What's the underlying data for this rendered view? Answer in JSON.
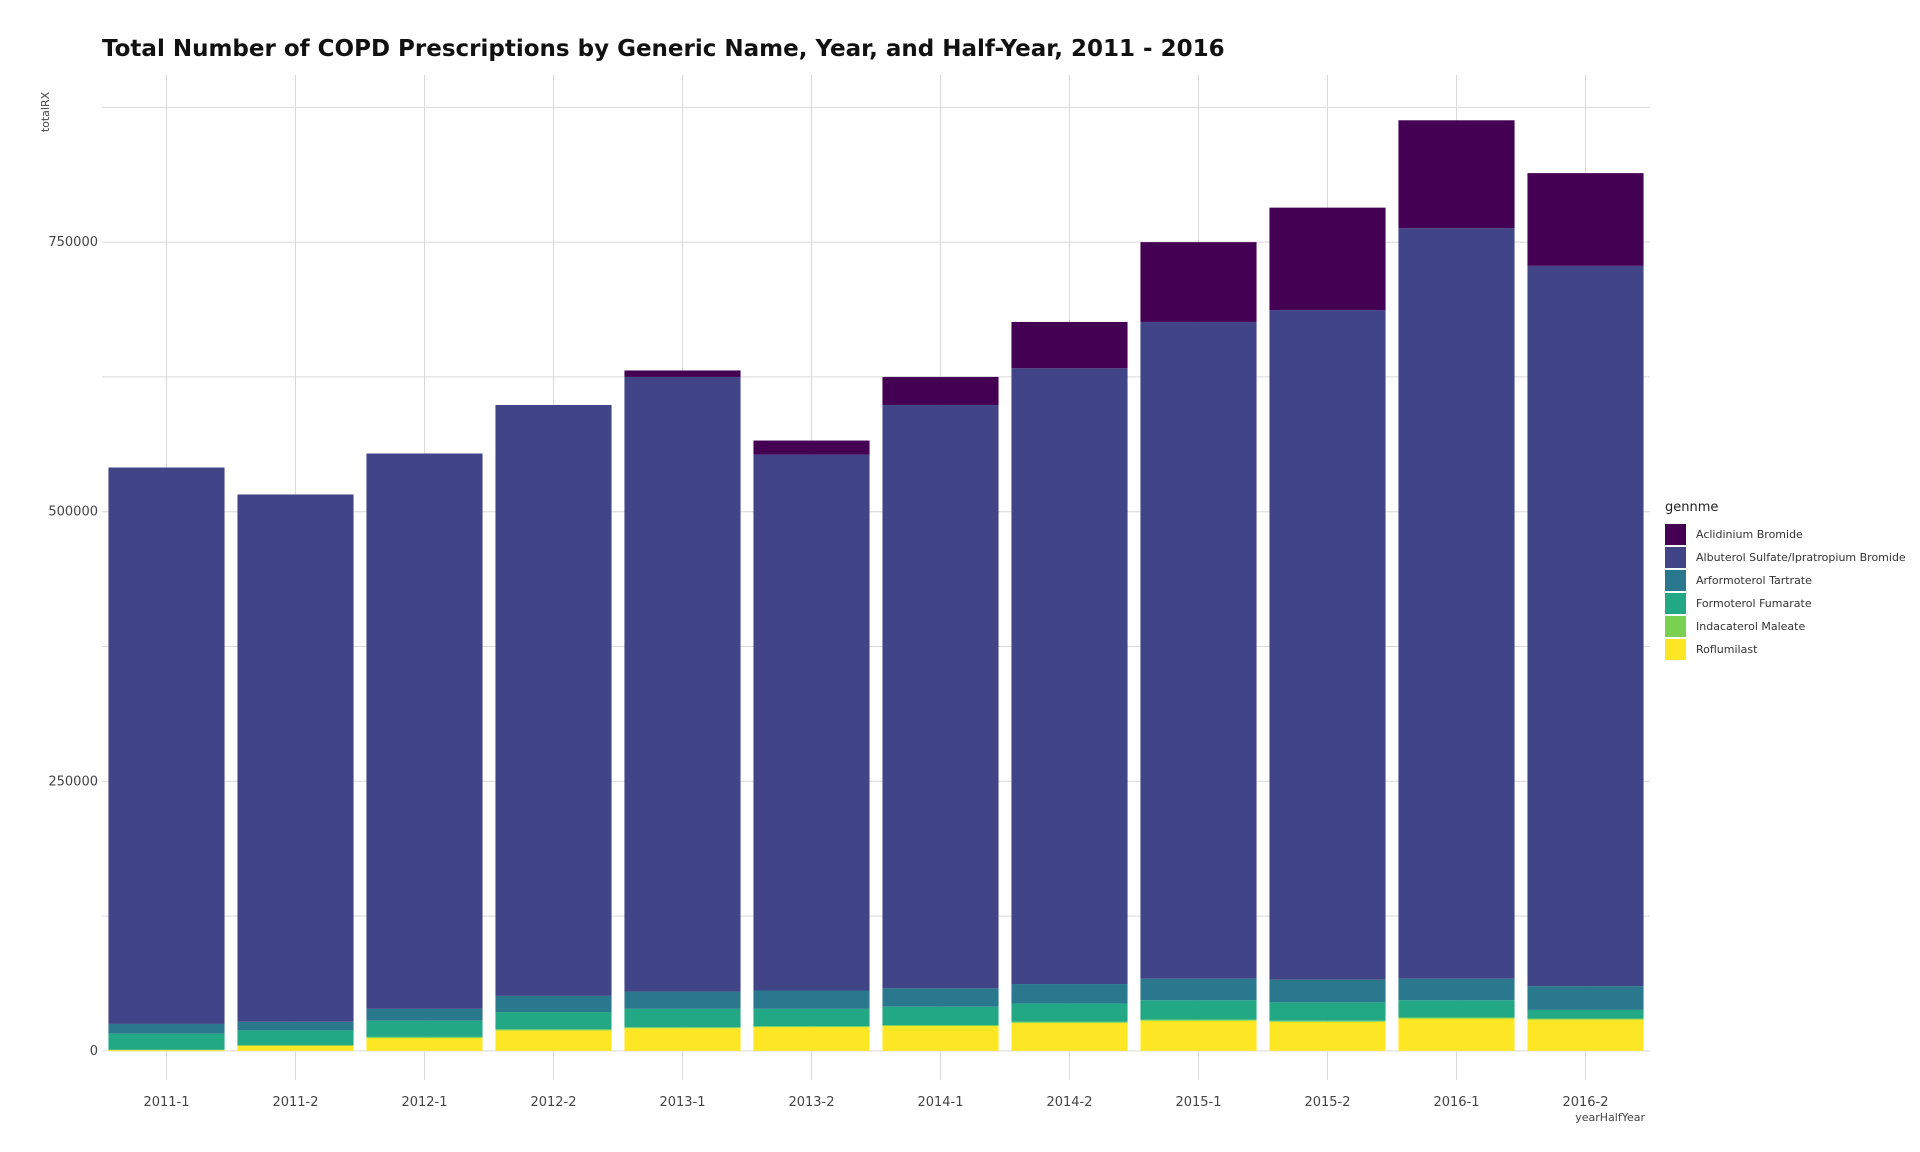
{
  "chart_data": {
    "type": "bar",
    "stacked": true,
    "title": "Total Number of COPD Prescriptions by Generic Name, Year, and Half-Year, 2011 - 2016",
    "xlabel": "yearHalfYear",
    "ylabel": "totalRX",
    "categories": [
      "2011-1",
      "2011-2",
      "2012-1",
      "2012-2",
      "2013-1",
      "2013-2",
      "2014-1",
      "2014-2",
      "2015-1",
      "2015-2",
      "2016-1",
      "2016-2"
    ],
    "ylim": [
      -27000,
      905000
    ],
    "y_ticks": [
      0,
      250000,
      500000,
      750000
    ],
    "y_tick_labels": [
      "0",
      "250000",
      "500000",
      "750000"
    ],
    "grid": true,
    "legend_title": "gennme",
    "legend_position": "right",
    "stack_order": [
      "Roflumilast",
      "Indacaterol Maleate",
      "Formoterol Fumarate",
      "Arformoterol Tartrate",
      "Albuterol Sulfate/Ipratropium Bromide",
      "Aclidinium Bromide"
    ],
    "series": [
      {
        "name": "Aclidinium Bromide",
        "color": "#440154",
        "values": [
          0,
          0,
          0,
          0,
          6000,
          13000,
          26000,
          43000,
          74000,
          95000,
          100000,
          86000
        ]
      },
      {
        "name": "Albuterol Sulfate/Ipratropium Bromide",
        "color": "#414487",
        "values": [
          516000,
          489000,
          515000,
          548000,
          570000,
          497000,
          541000,
          571000,
          609000,
          621000,
          696000,
          668000
        ]
      },
      {
        "name": "Arformoterol Tartrate",
        "color": "#2A788E",
        "values": [
          9000,
          8000,
          11000,
          15000,
          16000,
          17000,
          17000,
          18000,
          20000,
          21000,
          20000,
          22000
        ]
      },
      {
        "name": "Formoterol Fumarate",
        "color": "#22A884",
        "values": [
          15000,
          14000,
          15000,
          16000,
          17000,
          16000,
          17000,
          17000,
          18000,
          17000,
          16000,
          8000
        ]
      },
      {
        "name": "Indacaterol Maleate",
        "color": "#7AD151",
        "values": [
          0,
          0,
          1000,
          1000,
          1000,
          1000,
          1000,
          1000,
          1000,
          1000,
          1000,
          1000
        ]
      },
      {
        "name": "Roflumilast",
        "color": "#FDE725",
        "values": [
          1000,
          5000,
          12000,
          19000,
          21000,
          22000,
          23000,
          26000,
          28000,
          27000,
          30000,
          29000
        ]
      }
    ]
  }
}
